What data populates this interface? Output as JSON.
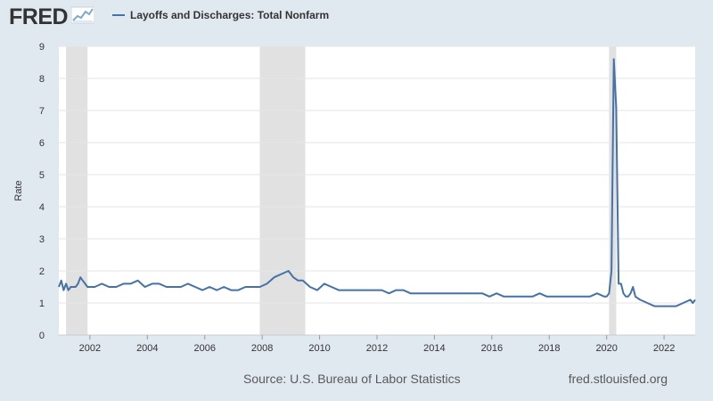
{
  "brand": {
    "name": "FRED",
    "logo_icon": "line-graph-icon"
  },
  "colors": {
    "background": "#e1e9f0",
    "plot_background": "#ffffff",
    "series": "#4572a7",
    "recession": "#e1e1e1",
    "grid": "#e6e6e6",
    "text": "#333333"
  },
  "footer": {
    "source": "Source: U.S. Bureau of Labor Statistics",
    "url": "fred.stlouisfed.org"
  },
  "chart_data": {
    "type": "line",
    "title": "",
    "xlabel": "",
    "ylabel": "Rate",
    "xlim": [
      "2000-12",
      "2023-02"
    ],
    "ylim": [
      0,
      9
    ],
    "yticks": [
      0,
      1,
      2,
      3,
      4,
      5,
      6,
      7,
      8,
      9
    ],
    "xticks": [
      "2002",
      "2004",
      "2006",
      "2008",
      "2010",
      "2012",
      "2014",
      "2016",
      "2018",
      "2020",
      "2022"
    ],
    "grid": true,
    "legend": "top-left",
    "recessions": [
      {
        "start": "2001-03",
        "end": "2001-11"
      },
      {
        "start": "2007-12",
        "end": "2009-06"
      },
      {
        "start": "2020-02",
        "end": "2020-04"
      }
    ],
    "series": [
      {
        "name": "Layoffs and Discharges: Total Nonfarm",
        "x": [
          "2000-12",
          "2001-01",
          "2001-02",
          "2001-03",
          "2001-04",
          "2001-05",
          "2001-06",
          "2001-07",
          "2001-08",
          "2001-09",
          "2001-10",
          "2001-11",
          "2001-12",
          "2002-03",
          "2002-06",
          "2002-09",
          "2002-12",
          "2003-03",
          "2003-06",
          "2003-09",
          "2003-12",
          "2004-03",
          "2004-06",
          "2004-09",
          "2004-12",
          "2005-03",
          "2005-06",
          "2005-09",
          "2005-12",
          "2006-03",
          "2006-06",
          "2006-09",
          "2006-12",
          "2007-03",
          "2007-06",
          "2007-09",
          "2007-12",
          "2008-03",
          "2008-06",
          "2008-09",
          "2008-12",
          "2009-02",
          "2009-04",
          "2009-06",
          "2009-09",
          "2009-12",
          "2010-03",
          "2010-06",
          "2010-09",
          "2010-12",
          "2011-03",
          "2011-06",
          "2011-09",
          "2011-12",
          "2012-03",
          "2012-06",
          "2012-09",
          "2012-12",
          "2013-03",
          "2013-06",
          "2013-09",
          "2013-12",
          "2014-03",
          "2014-06",
          "2014-09",
          "2014-12",
          "2015-03",
          "2015-06",
          "2015-09",
          "2015-12",
          "2016-03",
          "2016-06",
          "2016-09",
          "2016-12",
          "2017-03",
          "2017-06",
          "2017-09",
          "2017-12",
          "2018-03",
          "2018-06",
          "2018-09",
          "2018-12",
          "2019-03",
          "2019-06",
          "2019-09",
          "2019-12",
          "2020-01",
          "2020-02",
          "2020-03",
          "2020-04",
          "2020-05",
          "2020-06",
          "2020-07",
          "2020-08",
          "2020-09",
          "2020-10",
          "2020-11",
          "2020-12",
          "2021-01",
          "2021-03",
          "2021-06",
          "2021-09",
          "2021-12",
          "2022-03",
          "2022-06",
          "2022-09",
          "2022-12",
          "2023-01",
          "2023-02"
        ],
        "y": [
          1.5,
          1.7,
          1.4,
          1.6,
          1.4,
          1.5,
          1.5,
          1.5,
          1.6,
          1.8,
          1.7,
          1.6,
          1.5,
          1.5,
          1.6,
          1.5,
          1.5,
          1.6,
          1.6,
          1.7,
          1.5,
          1.6,
          1.6,
          1.5,
          1.5,
          1.5,
          1.6,
          1.5,
          1.4,
          1.5,
          1.4,
          1.5,
          1.4,
          1.4,
          1.5,
          1.5,
          1.5,
          1.6,
          1.8,
          1.9,
          2.0,
          1.8,
          1.7,
          1.7,
          1.5,
          1.4,
          1.6,
          1.5,
          1.4,
          1.4,
          1.4,
          1.4,
          1.4,
          1.4,
          1.4,
          1.3,
          1.4,
          1.4,
          1.3,
          1.3,
          1.3,
          1.3,
          1.3,
          1.3,
          1.3,
          1.3,
          1.3,
          1.3,
          1.3,
          1.2,
          1.3,
          1.2,
          1.2,
          1.2,
          1.2,
          1.2,
          1.3,
          1.2,
          1.2,
          1.2,
          1.2,
          1.2,
          1.2,
          1.2,
          1.3,
          1.2,
          1.2,
          1.3,
          2.0,
          8.6,
          7.1,
          1.6,
          1.6,
          1.3,
          1.2,
          1.2,
          1.3,
          1.5,
          1.2,
          1.1,
          1.0,
          0.9,
          0.9,
          0.9,
          0.9,
          1.0,
          1.1,
          1.0,
          1.1
        ]
      }
    ]
  }
}
